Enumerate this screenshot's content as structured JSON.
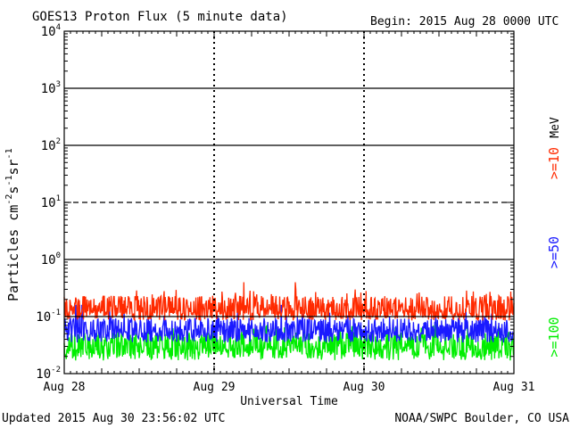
{
  "chart_data": {
    "type": "line",
    "title": "GOES13 Proton Flux (5 minute data)",
    "begin_label": "Begin: 2015 Aug 28 0000 UTC",
    "xlabel": "Universal Time",
    "ylabel_parts": {
      "base": "Particles cm",
      "e1": "-2",
      "mid1": "s",
      "e2": "-1",
      "mid2": "sr",
      "e3": "-1"
    },
    "x_categories": [
      "Aug 28",
      "Aug 29",
      "Aug 30",
      "Aug 31"
    ],
    "y_scale": "log",
    "ylim": [
      0.01,
      10000
    ],
    "y_ticks": [
      {
        "base": "10",
        "exp": "-2"
      },
      {
        "base": "10",
        "exp": "-1"
      },
      {
        "base": "10",
        "exp": "0"
      },
      {
        "base": "10",
        "exp": "1"
      },
      {
        "base": "10",
        "exp": "2"
      },
      {
        "base": "10",
        "exp": "3"
      },
      {
        "base": "10",
        "exp": "4"
      }
    ],
    "unit_label": "MeV",
    "series": [
      {
        "name": ">=10",
        "color": "#ff2a00",
        "typical": 0.13,
        "low": 0.085,
        "high": 0.3,
        "peak": 0.4
      },
      {
        "name": ">=50",
        "color": "#1a1aff",
        "typical": 0.055,
        "low": 0.035,
        "high": 0.12,
        "peak": 0.16
      },
      {
        "name": ">=100",
        "color": "#00ee00",
        "typical": 0.028,
        "low": 0.017,
        "high": 0.07,
        "peak": 0.09
      }
    ]
  },
  "footer": {
    "updated": "Updated 2015 Aug 30 23:56:02 UTC",
    "credit": "NOAA/SWPC Boulder, CO USA"
  }
}
